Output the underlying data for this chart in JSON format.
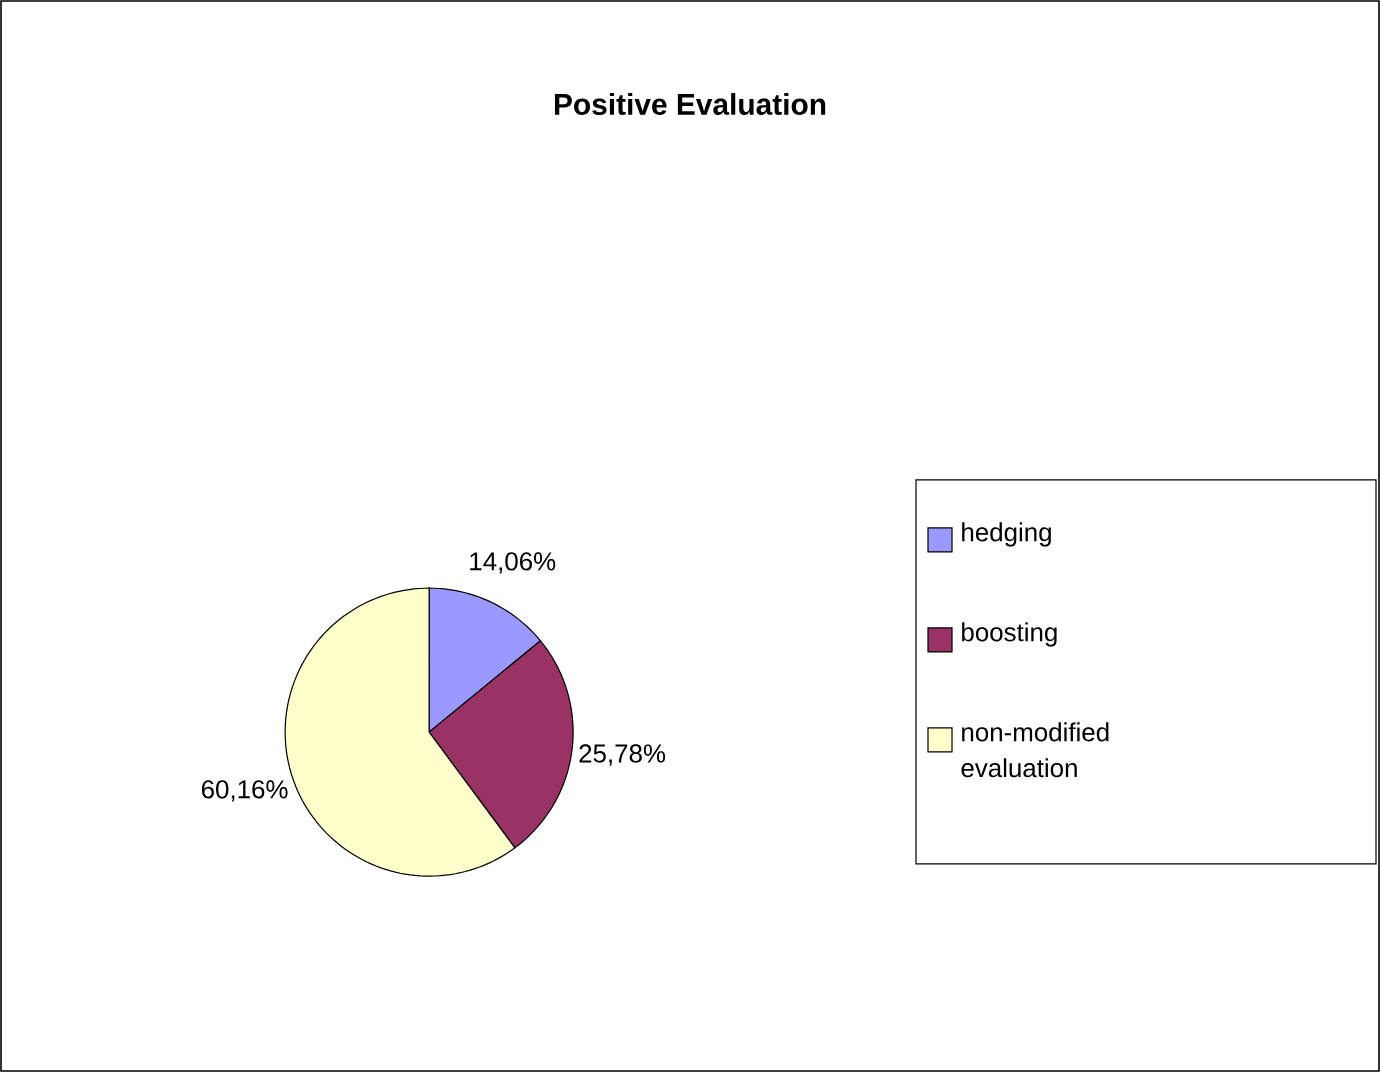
{
  "chart_data": {
    "type": "pie",
    "title": "Positive Evaluation",
    "categories": [
      "hedging",
      "boosting",
      "non-modified evaluation"
    ],
    "values": [
      14.06,
      25.78,
      60.16
    ],
    "colors": [
      "#9999ff",
      "#993366",
      "#ffffcc"
    ],
    "value_labels": [
      "14,06%",
      "25,78%",
      "60,16%"
    ],
    "legend": "right"
  }
}
